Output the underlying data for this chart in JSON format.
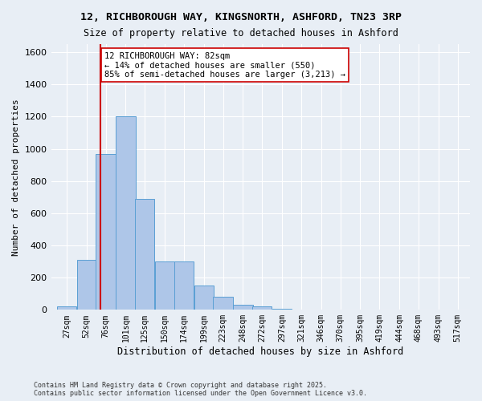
{
  "title1": "12, RICHBOROUGH WAY, KINGSNORTH, ASHFORD, TN23 3RP",
  "title2": "Size of property relative to detached houses in Ashford",
  "xlabel": "Distribution of detached houses by size in Ashford",
  "ylabel": "Number of detached properties",
  "footnote": "Contains HM Land Registry data © Crown copyright and database right 2025.\nContains public sector information licensed under the Open Government Licence v3.0.",
  "bin_labels": [
    "27sqm",
    "52sqm",
    "76sqm",
    "101sqm",
    "125sqm",
    "150sqm",
    "174sqm",
    "199sqm",
    "223sqm",
    "248sqm",
    "272sqm",
    "297sqm",
    "321sqm",
    "346sqm",
    "370sqm",
    "395sqm",
    "419sqm",
    "444sqm",
    "468sqm",
    "493sqm",
    "517sqm"
  ],
  "bin_starts": [
    27,
    52,
    76,
    101,
    125,
    150,
    174,
    199,
    223,
    248,
    272,
    297,
    321,
    346,
    370,
    395,
    419,
    444,
    468,
    493,
    517
  ],
  "bin_width": 25,
  "bar_heights": [
    20,
    310,
    970,
    1200,
    690,
    300,
    300,
    150,
    80,
    30,
    20,
    5,
    2,
    1,
    1,
    1,
    0,
    0,
    0,
    0,
    2
  ],
  "bar_color": "#aec6e8",
  "bar_edge_color": "#5a9fd4",
  "property_size": 82,
  "property_line_color": "#cc0000",
  "annotation_text": "12 RICHBOROUGH WAY: 82sqm\n← 14% of detached houses are smaller (550)\n85% of semi-detached houses are larger (3,213) →",
  "annotation_box_color": "#ffffff",
  "annotation_box_edge": "#cc0000",
  "ylim": [
    0,
    1650
  ],
  "yticks": [
    0,
    200,
    400,
    600,
    800,
    1000,
    1200,
    1400,
    1600
  ],
  "background_color": "#e8eef5",
  "grid_color": "#ffffff",
  "font_family": "monospace"
}
